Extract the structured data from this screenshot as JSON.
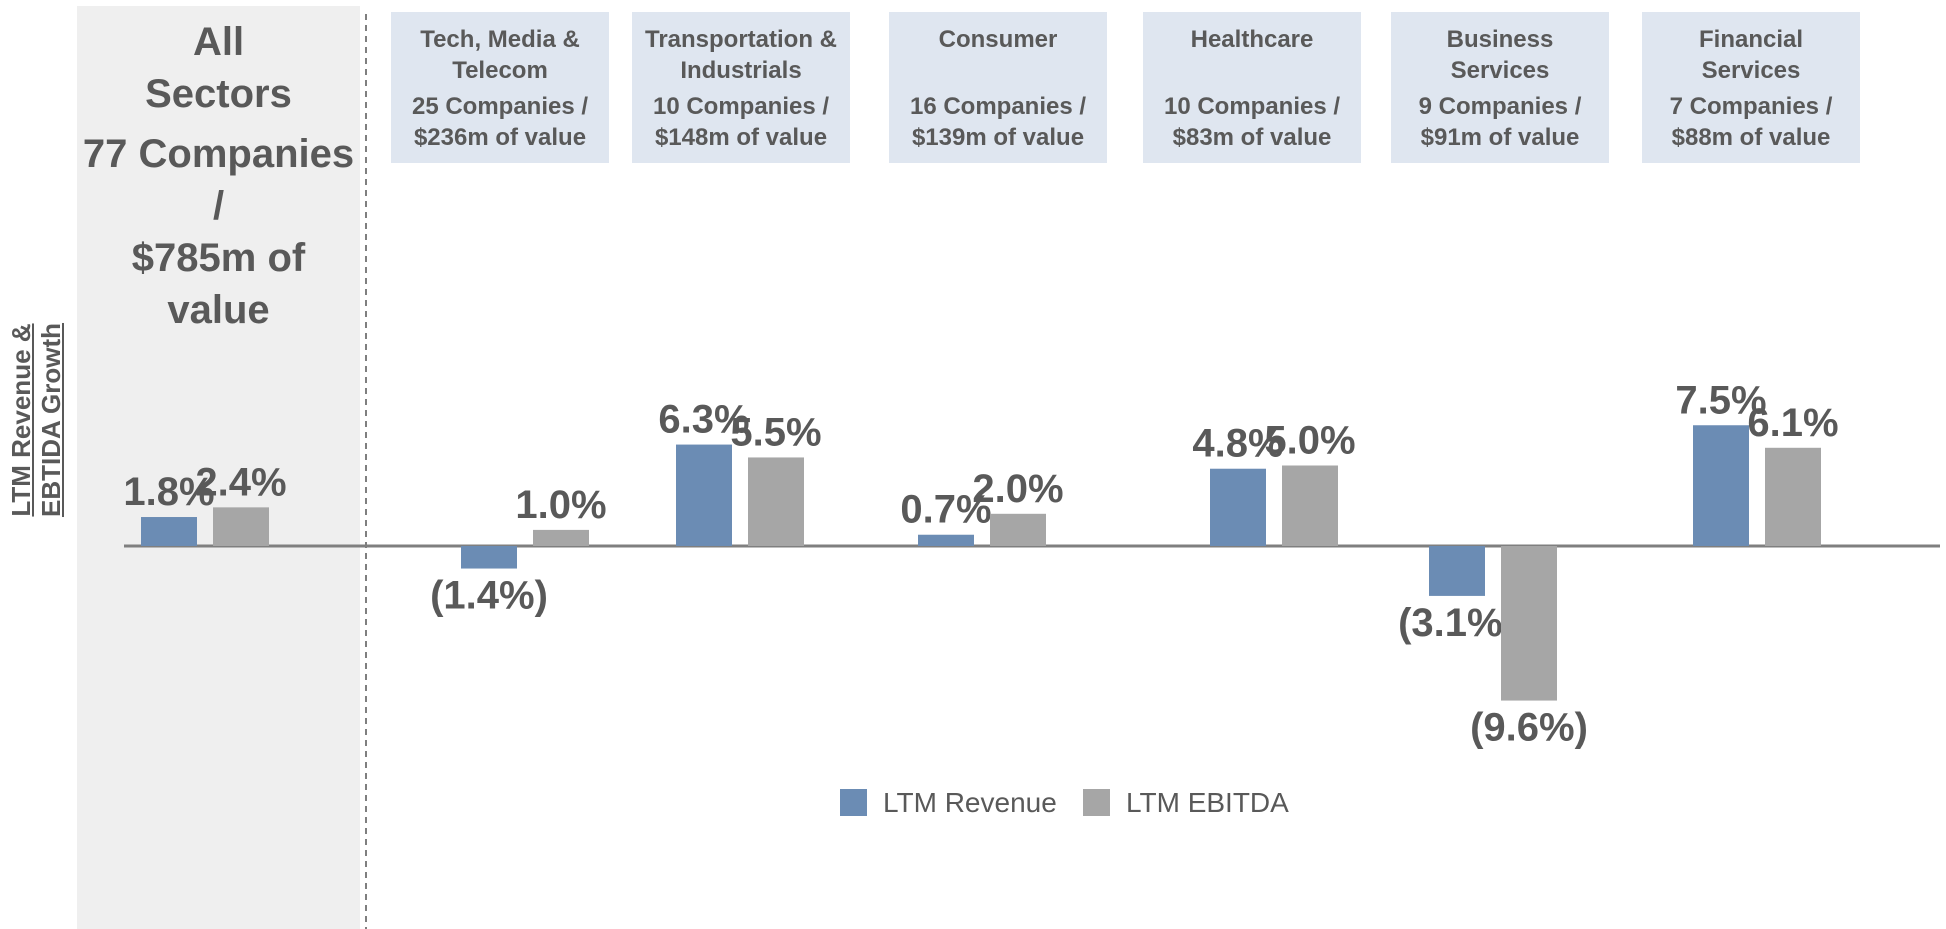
{
  "chart_data": {
    "type": "bar",
    "y_label": "LTM Revenue &\nEBTIDA Growth",
    "categories": [
      "All\nSectors",
      "Tech, Media &\nTelecom",
      "Transportation &\nIndustrials",
      "Consumer",
      "Healthcare",
      "Business\nServices",
      "Financial\nServices"
    ],
    "category_details": [
      "77 Companies /\n$785m of value",
      "25 Companies /\n$236m of value",
      "10 Companies /\n$148m of value",
      "16 Companies /\n$139m of value",
      "10 Companies /\n$83m of value",
      "9 Companies /\n$91m of value",
      "7 Companies /\n$88m of value"
    ],
    "series": [
      {
        "name": "LTM Revenue",
        "color": "#6b8cb4",
        "values": [
          1.8,
          -1.4,
          6.3,
          0.7,
          4.8,
          -3.1,
          7.5
        ],
        "value_labels": [
          "1.8%",
          "(1.4%)",
          "6.3%",
          "0.7%",
          "4.8%",
          "(3.1%)",
          "7.5%"
        ]
      },
      {
        "name": "LTM EBITDA",
        "color": "#a6a6a6",
        "values": [
          2.4,
          1.0,
          5.5,
          2.0,
          5.0,
          -9.6,
          6.1
        ],
        "value_labels": [
          "2.4%",
          "1.0%",
          "5.5%",
          "2.0%",
          "5.0%",
          "(9.6%)",
          "6.1%"
        ]
      }
    ],
    "legend": "bottom"
  }
}
